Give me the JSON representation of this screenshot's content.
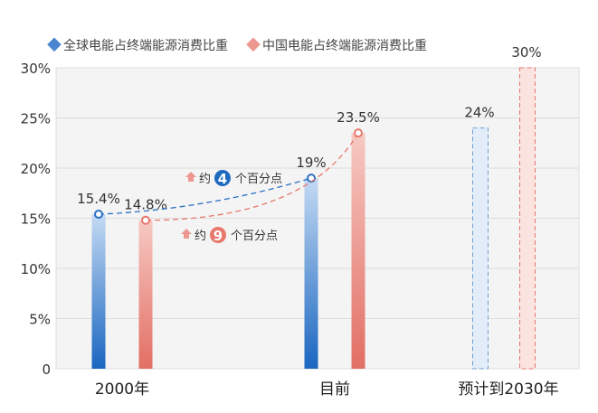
{
  "chart_data": {
    "type": "bar",
    "categories": [
      "2000年",
      "目前",
      "预计到2030年"
    ],
    "series": [
      {
        "name": "全球电能占终端能源消费比重",
        "values": [
          15.4,
          19,
          24
        ],
        "labels": [
          "15.4%",
          "19%",
          "24%"
        ],
        "color": "#2a6fc4"
      },
      {
        "name": "中国电能占终端能源消费比重",
        "values": [
          14.8,
          23.5,
          30
        ],
        "labels": [
          "14.8%",
          "23.5%",
          "30%"
        ],
        "color": "#e8776c"
      }
    ],
    "projected_category": "预计到2030年",
    "yticks": [
      "0",
      "5%",
      "10%",
      "15%",
      "20%",
      "25%",
      "30%"
    ],
    "ylim": [
      0,
      30
    ],
    "legend": "top-left",
    "grid": true,
    "annotations": [
      {
        "prefix": "约",
        "number": "4",
        "suffix": "个百分点",
        "color": "#1f6bbf"
      },
      {
        "prefix": "约",
        "number": "9",
        "suffix": "个百分点",
        "color": "#e8776c"
      }
    ]
  }
}
